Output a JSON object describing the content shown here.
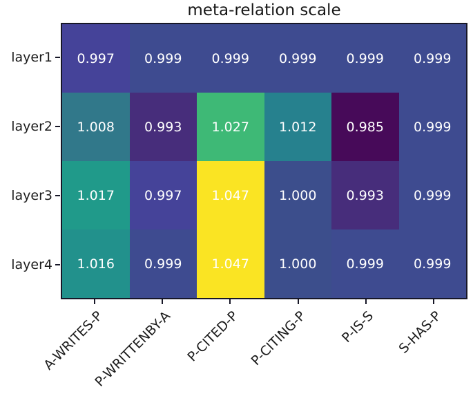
{
  "page": {
    "background": "#ffffff"
  },
  "chart_data": {
    "type": "heatmap",
    "title": "meta-relation scale",
    "rows": [
      "layer1",
      "layer2",
      "layer3",
      "layer4"
    ],
    "columns": [
      "A-WRITES-P",
      "P-WRITTENBY-A",
      "P-CITED-P",
      "P-CITING-P",
      "P-IS-S",
      "S-HAS-P"
    ],
    "values": [
      [
        "0.997",
        "0.999",
        "0.999",
        "0.999",
        "0.999",
        "0.999"
      ],
      [
        "1.008",
        "0.993",
        "1.027",
        "1.012",
        "0.985",
        "0.999"
      ],
      [
        "1.017",
        "0.997",
        "1.047",
        "1.000",
        "0.993",
        "0.999"
      ],
      [
        "1.016",
        "0.999",
        "1.047",
        "1.000",
        "0.999",
        "0.999"
      ]
    ],
    "cell_colors": [
      [
        "#454399",
        "#3e4b90",
        "#3e4b90",
        "#3e4b90",
        "#3e4b90",
        "#3e4b90"
      ],
      [
        "#31788a",
        "#472d7b",
        "#3eb976",
        "#26818e",
        "#470a59",
        "#3e4b90"
      ],
      [
        "#209a8a",
        "#454399",
        "#fae423",
        "#3c4e8c",
        "#472d7b",
        "#3e4b90"
      ],
      [
        "#22918c",
        "#3e4b90",
        "#fae423",
        "#3c4e8c",
        "#3e4b90",
        "#3e4b90"
      ]
    ],
    "value_range_shown": [
      0.985,
      1.047
    ],
    "colormap": "viridis",
    "value_text_color": "#ffffff",
    "axis_color": "#171727",
    "tick_label_color": "#1b1b1b",
    "x_tick_rotation_deg": 45,
    "grid": false,
    "legend": "none"
  }
}
